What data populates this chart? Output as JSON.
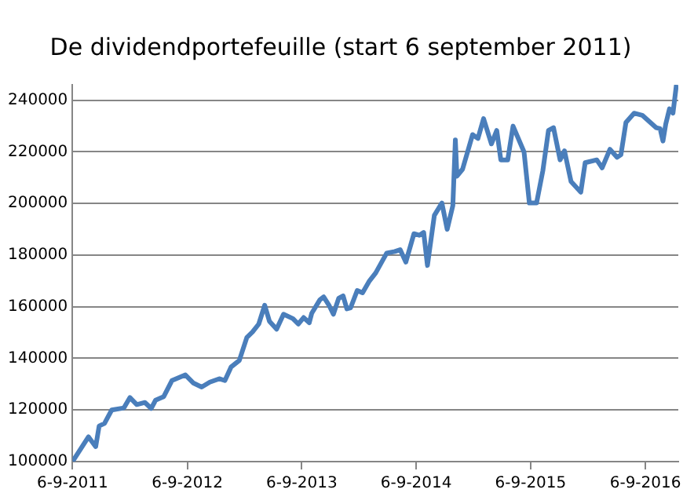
{
  "chart_data": {
    "type": "line",
    "title": "De dividendportefeuille (start 6 september 2011)",
    "x": [
      "2011-09-06",
      "2011-10-27",
      "2011-11-19",
      "2011-11-30",
      "2011-12-17",
      "2012-01-09",
      "2012-02-17",
      "2012-03-07",
      "2012-03-29",
      "2012-04-24",
      "2012-05-14",
      "2012-05-28",
      "2012-06-23",
      "2012-07-19",
      "2012-08-31",
      "2012-09-26",
      "2012-10-22",
      "2012-11-17",
      "2012-12-17",
      "2013-01-04",
      "2013-01-24",
      "2013-02-19",
      "2013-03-15",
      "2013-04-02",
      "2013-04-22",
      "2013-05-11",
      "2013-05-26",
      "2013-06-18",
      "2013-07-10",
      "2013-08-09",
      "2013-08-26",
      "2013-09-12",
      "2013-09-30",
      "2013-10-08",
      "2013-11-03",
      "2013-11-15",
      "2013-12-02",
      "2013-12-16",
      "2014-01-02",
      "2014-01-16",
      "2014-01-28",
      "2014-02-09",
      "2014-03-02",
      "2014-03-19",
      "2014-04-10",
      "2014-04-30",
      "2014-06-04",
      "2014-06-30",
      "2014-07-17",
      "2014-08-04",
      "2014-08-30",
      "2014-09-16",
      "2014-09-30",
      "2014-10-12",
      "2014-11-03",
      "2014-11-27",
      "2014-12-14",
      "2015-01-01",
      "2015-01-09",
      "2015-01-14",
      "2015-02-01",
      "2015-03-05",
      "2015-03-22",
      "2015-04-09",
      "2015-05-04",
      "2015-05-21",
      "2015-06-03",
      "2015-06-25",
      "2015-07-12",
      "2015-08-16",
      "2015-09-02",
      "2015-09-25",
      "2015-10-15",
      "2015-11-02",
      "2015-11-18",
      "2015-12-09",
      "2015-12-23",
      "2016-01-13",
      "2016-02-13",
      "2016-02-27",
      "2016-04-04",
      "2016-04-21",
      "2016-05-16",
      "2016-06-08",
      "2016-06-20",
      "2016-07-06",
      "2016-08-01",
      "2016-08-27",
      "2016-10-10",
      "2016-10-23",
      "2016-11-01",
      "2016-11-10",
      "2016-11-22",
      "2016-12-03",
      "2016-12-14"
    ],
    "series": [
      {
        "color": "#4a7ebb",
        "values": [
          100000,
          109600,
          105800,
          113800,
          114800,
          120000,
          120800,
          124800,
          122100,
          122900,
          120600,
          123800,
          125200,
          131400,
          133600,
          130400,
          128900,
          130800,
          132100,
          131400,
          136700,
          139200,
          148100,
          150200,
          153300,
          160600,
          154400,
          151300,
          157100,
          155400,
          153300,
          155800,
          153800,
          157500,
          162700,
          163800,
          160600,
          157100,
          163300,
          164200,
          159200,
          159600,
          166300,
          165400,
          170000,
          173100,
          180800,
          181400,
          182100,
          177300,
          188300,
          187700,
          188800,
          176000,
          195400,
          200200,
          190000,
          199200,
          224600,
          210600,
          213300,
          226700,
          225200,
          232900,
          223100,
          228300,
          216900,
          216900,
          230000,
          220000,
          200200,
          200200,
          212700,
          228300,
          229400,
          216900,
          220400,
          208500,
          204400,
          215800,
          216900,
          213800,
          221000,
          217900,
          218900,
          231400,
          235000,
          234200,
          229400,
          229000,
          224200,
          230800,
          236700,
          235000,
          246000
        ]
      }
    ],
    "xlim": [
      "2011-09-06",
      "2016-12-20"
    ],
    "xticks": [
      {
        "value": "2011-09-06",
        "label": "6-9-2011"
      },
      {
        "value": "2012-09-06",
        "label": "6-9-2012"
      },
      {
        "value": "2013-09-06",
        "label": "6-9-2013"
      },
      {
        "value": "2014-09-06",
        "label": "6-9-2014"
      },
      {
        "value": "2015-09-06",
        "label": "6-9-2015"
      },
      {
        "value": "2016-09-06",
        "label": "6-9-2016"
      }
    ],
    "ylim": [
      100000,
      246000
    ],
    "yticks": [
      100000,
      120000,
      140000,
      160000,
      180000,
      200000,
      220000,
      240000
    ],
    "grid": "y",
    "legend": false,
    "marker": "none",
    "line_style": "solid"
  }
}
